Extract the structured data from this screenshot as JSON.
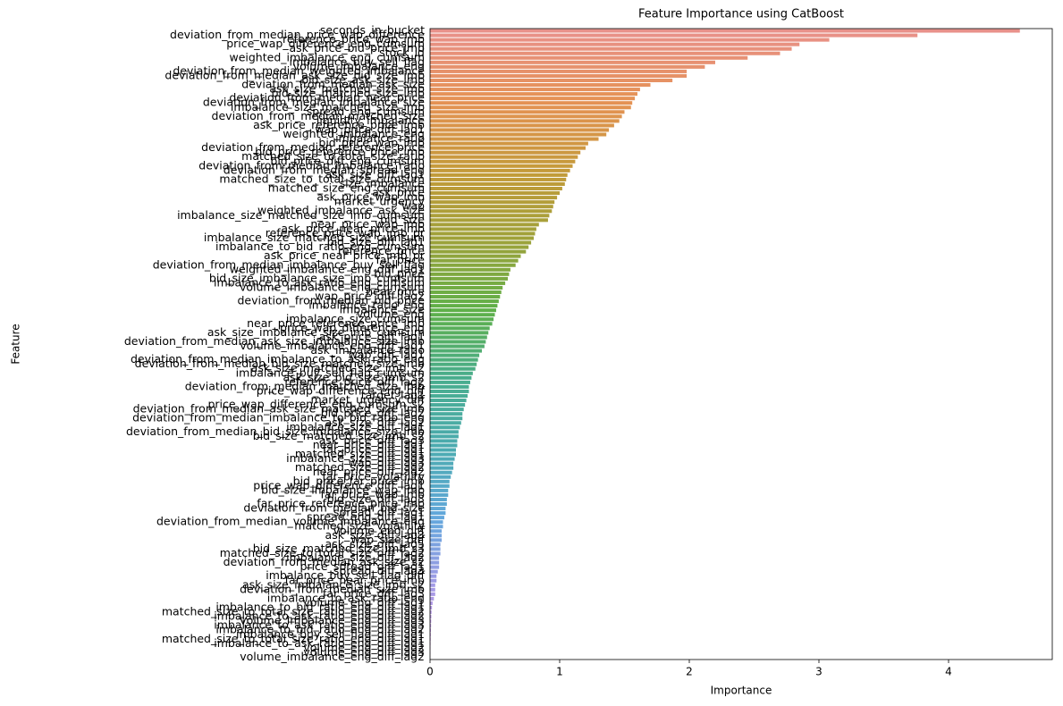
{
  "chart_data": {
    "type": "barh",
    "title": "Feature Importance using CatBoost",
    "x_label": "Importance",
    "y_label": "Feature",
    "xlim": [
      0,
      4.8
    ],
    "xticks": [
      0,
      1,
      2,
      3,
      4
    ],
    "palette": [
      "#e8918a",
      "#e59254",
      "#c49a3a",
      "#9ea23a",
      "#5fb049",
      "#49ad8e",
      "#4cabb0",
      "#63a7dc",
      "#a59be6",
      "#d594e0"
    ],
    "categories": [
      "seconds_in_bucket",
      "deviation_from_median_price_wap_difference",
      "reference_price_wap_imb",
      "price_wap_difference_eng_cumsum",
      "ask_price_bid_price_imb",
      "stock_id",
      "weighted_imbalance_eng_cumsum",
      "imbalance_buy_sell_flag",
      "volume_imbalance_eng",
      "deviation_from_median_weighted_imbalance",
      "deviation_from_median_ask_size_bid_size_imb",
      "bid_size_ask_size_imb",
      "deviation_from_median_ask_size",
      "ask_size_matched_size_imb",
      "bid_size_matched_size_imb",
      "deviation_from_median_near_price",
      "deviation_from_median_imbalance_size",
      "imbalance_size_matched_size_imb",
      "spread_eng_cumsum",
      "deviation_from_median_matched_size",
      "liquidity_imbalance",
      "ask_price_reference_price_imb",
      "wap_price_diff_lag1",
      "weighted_imbalance_eng",
      "imbalance_ratio",
      "bid_price_wap_imb",
      "deviation_from_median_reference_price",
      "bid_price_reference_price_imb",
      "matched_size_to_total_size_ratio",
      "bid_price_diff_eng_cumsum",
      "deviation_from_median_imbalance_ratio",
      "deviation_from_median_spread_eng",
      "ask_size_diff_lag1",
      "matched_size_to_total_size_cumsum",
      "size_imbalance",
      "matched_size_eng_cumsum",
      "ask_price",
      "ask_price_wap_imb",
      "market_urgency",
      "wap",
      "weighted_imbalance_ask_size",
      "imbalance_size_matched_size_imb_cumsum",
      "bid_size",
      "near_price_wap_imb",
      "ask_price_near_price_imb",
      "reference_price_wap_imb_pr",
      "imbalance_size_matched_size_cumsum",
      "bid_size_diff_lag1",
      "imbalance_to_bid_ratio_eng_cumsum",
      "reference_price",
      "ask_price_near_price_imb_pr",
      "far_price",
      "deviation_from_median_imbalance_buy_sell_flag",
      "weighted_imbalance_eng_diff_lag1",
      "bid_price",
      "bid_size_imbalance_size_imb_cumsum",
      "imbalance_to_ask_ratio_eng_cumsum",
      "volume_imbalance_eng_cumsum",
      "near_price",
      "wap_price_diff_lag2",
      "deviation_from_median_bid_price",
      "imbalance_ratio_eng",
      "imbalance_size",
      "volume_eng",
      "imbalance_size_cumsum",
      "near_price_reference_price_imb",
      "price_wap_difference_eng",
      "ask_size_imbalance_size_imb_cumsum",
      "ask_price_diff_lag1",
      "deviation_from_median_ask_size_imbalance_size_imb",
      "volume_imbalance_eng_diff_lag1",
      "ask_imbalance_ratio",
      "wap_diff_lag1",
      "deviation_from_median_imbalance_to_ask_ratio_eng",
      "deviation_from_median_bid_size_matched_size_imb",
      "ask_size_matched_size_imb_s2",
      "imbalance_buy_sell_flag_cumsum",
      "ask_size_bid_size_imb_s2",
      "reference_price_diff_lag2",
      "deviation_from_median_matched_size_imb",
      "price_wap_difference_eng_diff",
      "target_lag1",
      "market_urgency_diff",
      "price_wap_difference_eng_cumsum_s2",
      "deviation_from_median_ask_size_matched_size_imb",
      "bid_price_diff_lag2",
      "deviation_from_median_imbalance_to_bid_ratio_eng",
      "ask_size_diff_lag2",
      "imbalance_size_diff_lag1",
      "deviation_from_median_bid_size_imbalance_size_imb",
      "bid_size_matched_size_imb_s2",
      "ask_price_diff_lag3",
      "near_price_diff_lag1",
      "far_price_diff_lag1",
      "matched_size_diff_lag1",
      "imbalance_size_diff_lag3",
      "wap_diff_lag3",
      "matched_size_diff_lag2",
      "near_price_diff_lag2",
      "far_price_volatility",
      "bid_price_far_price_imb",
      "price_wap_difference_diff_lag1",
      "bid_size_imbalance_wap_imb",
      "far_price_wap_imb",
      "bid_size_diff_lag3",
      "far_price_reference_price_imb",
      "deviation_from_median_bid_size",
      "spread_diff_lag1",
      "spread_eng_diff_lag1",
      "deviation_from_median_volume_imbalance_eng",
      "matched_size_volatility",
      "volume_eng_diff",
      "ask_size_diff_lag3",
      "wap_size_diff",
      "ask_size_diff_lag5",
      "bid_size_matched_size_imb_s3",
      "matched_size_to_total_size_diff_lag2",
      "imbalance_size_diff_lag2",
      "deviation_from_median_ask_size_s2",
      "price_spread_diff_lag1",
      "spread_diff_lag3",
      "imbalance_buy_sell_flag_diff",
      "far_price_near_price_imb",
      "ask_size_imbalance_size_imb_s2",
      "deviation_from_median_size_imb",
      "far_price_diff_lag3",
      "imbalance_to_ask_ratio_eng",
      "volume_eng_diff_lag1",
      "imbalance_to_bid_ratio_eng_diff_lag1",
      "matched_size_to_total_size_ratio_eng_diff_lag2",
      "imbalance_to_ask_ratio_eng_diff_lag2",
      "volume_imbalance_eng_diff_lag3",
      "imbalance_to_ask_ratio_eng_diff_lag3",
      "imbalance_to_bid_ratio_eng_diff_lag2",
      "imbalance_buy_sell_flag_diff_lag1",
      "matched_size_to_total_size_ratio_eng_diff_lag1",
      "imbalance_to_ask_ratio_eng_diff_lag1",
      "volume_eng_diff_lag2",
      "volume_eng_diff_lag3",
      "volume_imbalance_eng_diff_lag2"
    ],
    "values": [
      4.55,
      3.76,
      3.08,
      2.85,
      2.79,
      2.7,
      2.45,
      2.2,
      2.12,
      1.98,
      1.98,
      1.87,
      1.7,
      1.62,
      1.6,
      1.58,
      1.56,
      1.55,
      1.5,
      1.48,
      1.46,
      1.42,
      1.38,
      1.36,
      1.3,
      1.22,
      1.2,
      1.16,
      1.14,
      1.12,
      1.1,
      1.08,
      1.06,
      1.05,
      1.04,
      1.02,
      1.0,
      0.98,
      0.96,
      0.95,
      0.94,
      0.92,
      0.91,
      0.84,
      0.82,
      0.81,
      0.8,
      0.78,
      0.76,
      0.74,
      0.7,
      0.68,
      0.66,
      0.62,
      0.61,
      0.6,
      0.58,
      0.56,
      0.55,
      0.54,
      0.53,
      0.52,
      0.51,
      0.5,
      0.49,
      0.48,
      0.46,
      0.45,
      0.44,
      0.43,
      0.42,
      0.4,
      0.38,
      0.37,
      0.36,
      0.35,
      0.33,
      0.32,
      0.31,
      0.3,
      0.3,
      0.29,
      0.28,
      0.27,
      0.26,
      0.25,
      0.25,
      0.24,
      0.23,
      0.22,
      0.22,
      0.21,
      0.21,
      0.2,
      0.2,
      0.19,
      0.18,
      0.18,
      0.17,
      0.16,
      0.15,
      0.15,
      0.14,
      0.14,
      0.13,
      0.13,
      0.12,
      0.12,
      0.11,
      0.1,
      0.1,
      0.09,
      0.09,
      0.09,
      0.08,
      0.08,
      0.08,
      0.07,
      0.07,
      0.07,
      0.06,
      0.05,
      0.05,
      0.04,
      0.04,
      0.04,
      0.03,
      0.02,
      0.015,
      0.012,
      0.01,
      0.009,
      0.008,
      0.007,
      0.006,
      0.005,
      0.004,
      0.003,
      0.002,
      0.001
    ]
  }
}
